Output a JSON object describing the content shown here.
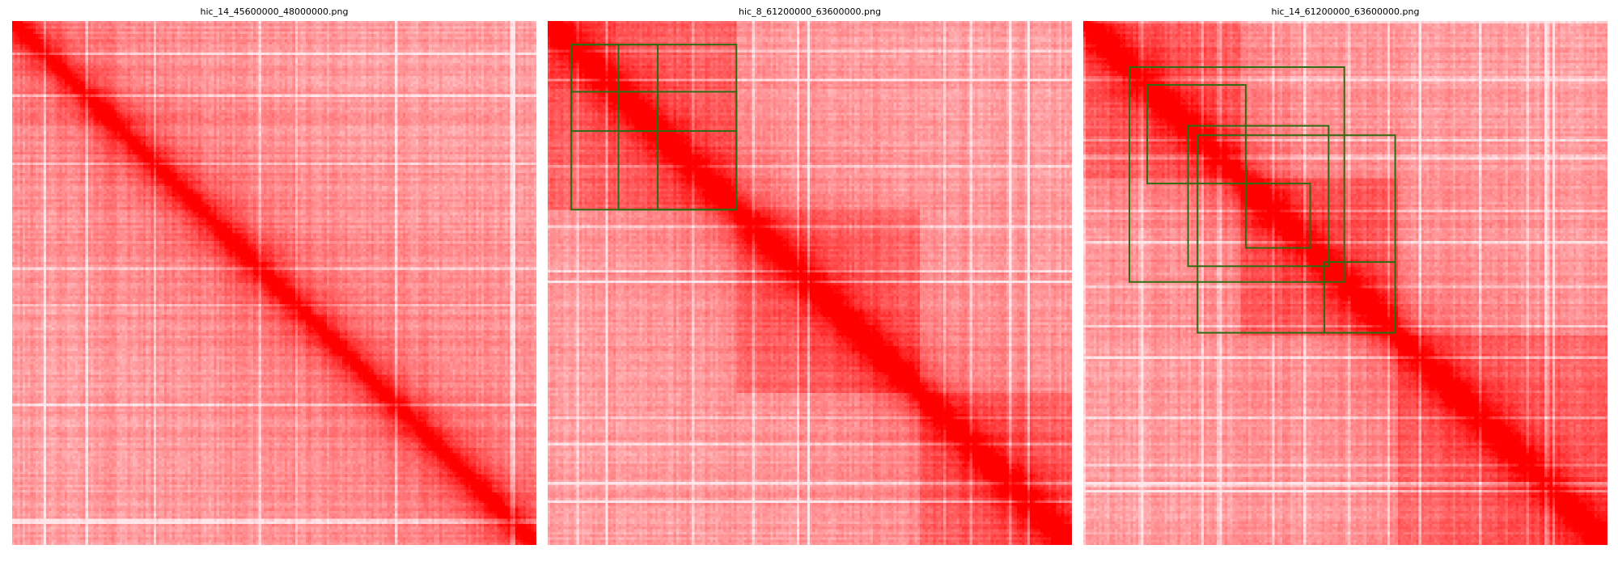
{
  "chart_data": [
    {
      "type": "heatmap",
      "title": "hic_14_45600000_48000000.png",
      "colors": {
        "low": "#ffe6ea",
        "high": "#ff0000",
        "box": "#2e6b12"
      },
      "domains": [],
      "boxes": []
    },
    {
      "type": "heatmap",
      "title": "hic_8_61200000_63600000.png",
      "colors": {
        "low": "#ffe6ea",
        "high": "#ff0000",
        "box": "#2e6b12"
      },
      "domains": [
        [
          0.0,
          0.36
        ],
        [
          0.36,
          0.71
        ],
        [
          0.71,
          1.0
        ]
      ],
      "boxes": [
        [
          0.045,
          0.135
        ],
        [
          0.045,
          0.21
        ],
        [
          0.045,
          0.36
        ],
        [
          0.135,
          0.21
        ],
        [
          0.135,
          0.36
        ],
        [
          0.21,
          0.36
        ],
        [
          0.045,
          0.045
        ],
        [
          0.135,
          0.135
        ],
        [
          0.21,
          0.21
        ]
      ]
    },
    {
      "type": "heatmap",
      "title": "hic_14_61200000_63600000.png",
      "colors": {
        "low": "#ffe6ea",
        "high": "#ff0000",
        "box": "#2e6b12"
      },
      "domains": [
        [
          0.0,
          0.3
        ],
        [
          0.3,
          0.6
        ],
        [
          0.6,
          1.0
        ]
      ],
      "boxes": [
        [
          0.088,
          0.498
        ],
        [
          0.122,
          0.31
        ],
        [
          0.2,
          0.468
        ],
        [
          0.218,
          0.595
        ],
        [
          0.31,
          0.433
        ],
        [
          0.46,
          0.595
        ]
      ]
    }
  ]
}
